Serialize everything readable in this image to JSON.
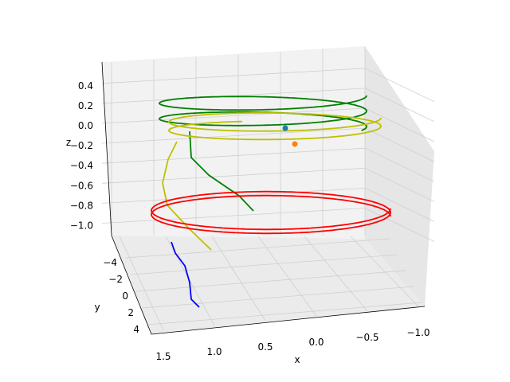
{
  "chart_data": {
    "type": "line3d",
    "title": "",
    "axes": {
      "x": {
        "label": "x",
        "ticks": [
          "1.5",
          "1.0",
          "0.5",
          "0.0",
          "−0.5",
          "−1.0"
        ],
        "tick_values": [
          1.5,
          1.0,
          0.5,
          0.0,
          -0.5,
          -1.0
        ],
        "range": [
          -1.25,
          1.55
        ]
      },
      "y": {
        "label": "y",
        "ticks": [
          "−4",
          "−2",
          "0",
          "2",
          "4"
        ],
        "tick_values": [
          -4,
          -2,
          0,
          2,
          4
        ],
        "range": [
          -5,
          5
        ]
      },
      "z": {
        "label": "z",
        "ticks": [
          "0.4",
          "0.2",
          "0.0",
          "−0.2",
          "−0.4",
          "−0.6",
          "−0.8",
          "−1.0"
        ],
        "tick_values": [
          0.4,
          0.2,
          0.0,
          -0.2,
          -0.4,
          -0.6,
          -0.8,
          -1.0
        ],
        "range": [
          -1.1,
          0.5
        ]
      }
    },
    "grid": true,
    "series": [
      {
        "color": "#008000",
        "kind": "helix",
        "z_min": -0.15,
        "z_max": 0.45,
        "x_range": [
          -1.2,
          1.2
        ],
        "segment": "upper"
      },
      {
        "color": "#bfbf00",
        "kind": "helix",
        "z_min": -0.2,
        "z_max": 0.3,
        "x_range": [
          -1.2,
          1.2
        ],
        "segment": "upper"
      },
      {
        "color": "#ff0000",
        "kind": "helix",
        "z_min": -1.0,
        "z_max": -0.55,
        "x_range": [
          -1.25,
          1.4
        ],
        "segment": "lower"
      },
      {
        "color": "#0000ff",
        "kind": "curve",
        "z_start": -1.05,
        "z_end": -1.4
      }
    ],
    "markers": [
      {
        "color": "#1f77b4",
        "x": 0.0,
        "y": 0.0,
        "z": 0.0
      },
      {
        "color": "#ff7f0e",
        "x": 0.0,
        "y": 0.0,
        "z": -0.2
      }
    ]
  }
}
